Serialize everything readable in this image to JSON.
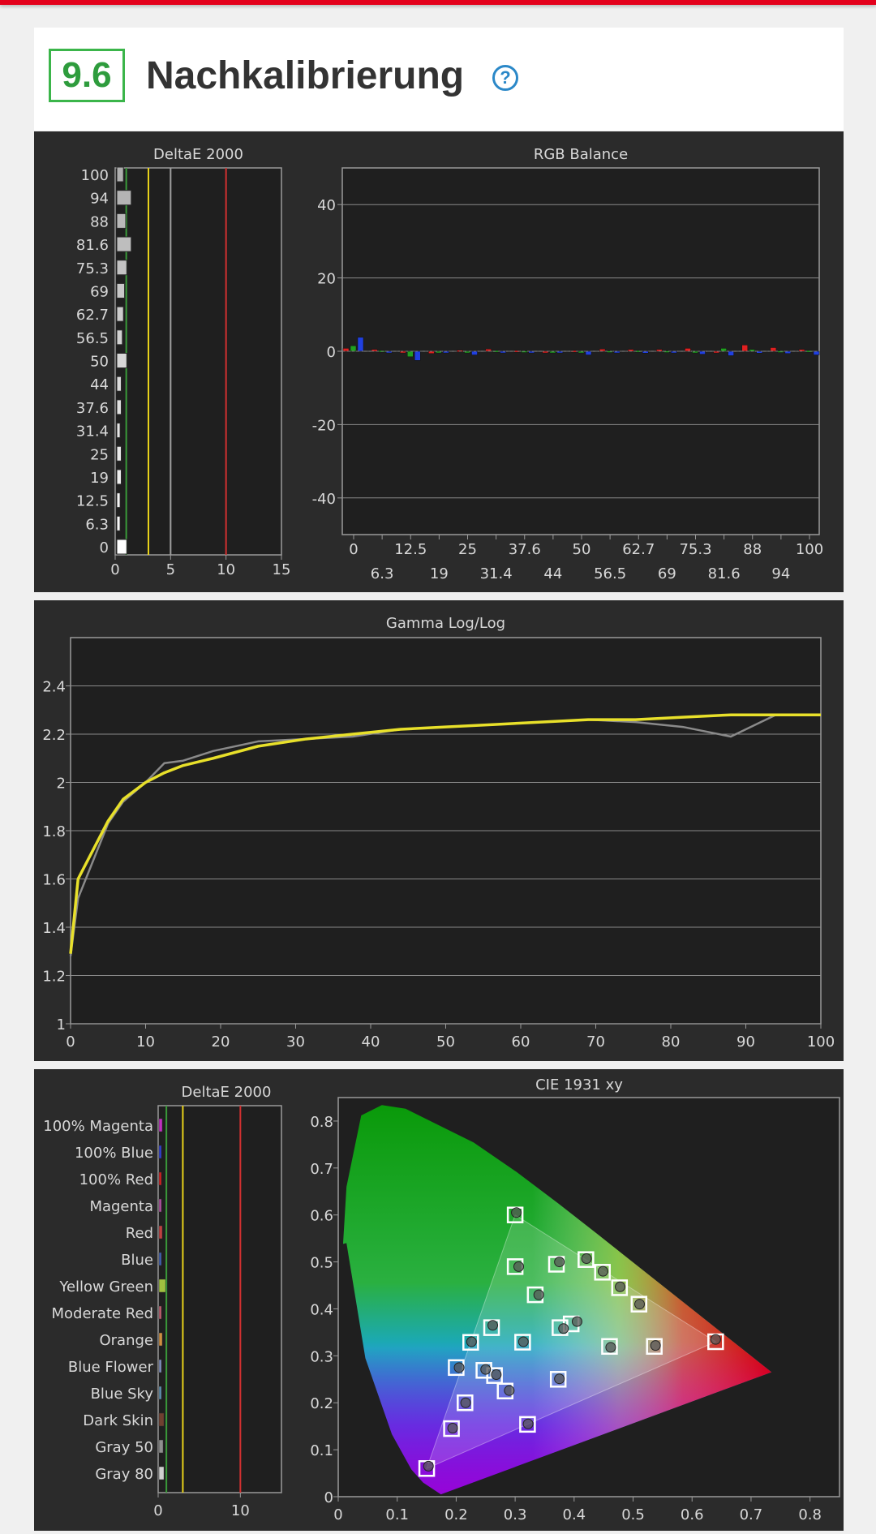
{
  "header": {
    "section_number": "9.6",
    "title": "Nachkalibrierung",
    "help_icon": "question-circle-icon"
  },
  "colors": {
    "accent_green": "#3bb54a",
    "brand_red": "#e3001b",
    "help_blue": "#2b88c8",
    "target_yellow": "#e8d21a"
  },
  "chart_data": [
    {
      "type": "bar",
      "title": "DeltaE 2000",
      "orientation": "horizontal",
      "categories": [
        "0",
        "6.3",
        "12.5",
        "19",
        "25",
        "31.4",
        "37.6",
        "44",
        "50",
        "56.5",
        "62.7",
        "69",
        "75.3",
        "81.6",
        "88",
        "94",
        "100"
      ],
      "values": [
        0.9,
        0.3,
        0.3,
        0.4,
        0.4,
        0.3,
        0.4,
        0.4,
        0.9,
        0.5,
        0.6,
        0.7,
        0.9,
        1.3,
        0.8,
        1.3,
        0.6
      ],
      "xlim": [
        0,
        15
      ],
      "xticks": [
        0,
        5,
        10,
        15
      ],
      "reference_lines": [
        {
          "value": 1,
          "color": "#3a9a3a"
        },
        {
          "value": 3,
          "color": "#e8d21a"
        },
        {
          "value": 5,
          "color": "#a0a0a0"
        },
        {
          "value": 10,
          "color": "#d03030"
        }
      ]
    },
    {
      "type": "bar",
      "title": "RGB Balance",
      "categories": [
        "0",
        "6.3",
        "12.5",
        "19",
        "25",
        "31.4",
        "37.6",
        "44",
        "50",
        "56.5",
        "62.7",
        "69",
        "75.3",
        "81.6",
        "88",
        "94",
        "100"
      ],
      "series": [
        {
          "color": "#e02020",
          "values": [
            0.8,
            0.5,
            -0.4,
            -0.6,
            0.3,
            0.6,
            0.2,
            -0.2,
            0.2,
            0.6,
            0.5,
            0.5,
            0.8,
            -0.3,
            1.7,
            1.0,
            0.5
          ]
        },
        {
          "color": "#20a020",
          "values": [
            1.5,
            0.2,
            -1.5,
            -0.3,
            -0.2,
            0.2,
            0.1,
            0.0,
            -0.3,
            0.1,
            0.2,
            0.1,
            -0.2,
            0.8,
            0.5,
            0.1,
            0.2
          ]
        },
        {
          "color": "#2040e0",
          "values": [
            3.8,
            -0.2,
            -2.5,
            -0.4,
            -1.0,
            -0.1,
            -0.2,
            -0.4,
            -1.0,
            -0.4,
            -0.5,
            -0.3,
            -0.8,
            -1.2,
            -0.5,
            -0.6,
            -1.0
          ]
        }
      ],
      "ylim": [
        -50,
        50
      ],
      "yticks": [
        40,
        20,
        0,
        -20,
        -40
      ]
    },
    {
      "type": "line",
      "title": "Gamma Log/Log",
      "x": [
        0,
        1,
        5,
        7,
        10,
        12.5,
        15,
        19,
        25,
        31.4,
        37.6,
        44,
        50,
        56.5,
        62.7,
        69,
        75.3,
        81.6,
        88,
        94,
        100
      ],
      "series": [
        {
          "color": "#8a8a8a",
          "values": [
            1.28,
            1.52,
            1.83,
            1.92,
            2.0,
            2.08,
            2.09,
            2.13,
            2.17,
            2.18,
            2.19,
            2.22,
            2.23,
            2.24,
            2.25,
            2.26,
            2.25,
            2.23,
            2.19,
            2.28,
            2.28
          ]
        },
        {
          "color": "#e8e02a",
          "values": [
            1.29,
            1.6,
            1.84,
            1.93,
            2.0,
            2.04,
            2.07,
            2.1,
            2.15,
            2.18,
            2.2,
            2.22,
            2.23,
            2.24,
            2.25,
            2.26,
            2.26,
            2.27,
            2.28,
            2.28,
            2.28
          ]
        }
      ],
      "xlim": [
        0,
        100
      ],
      "xticks": [
        0,
        10,
        20,
        30,
        40,
        50,
        60,
        70,
        80,
        90,
        100
      ],
      "ylim": [
        1,
        2.6
      ],
      "yticks": [
        1,
        1.2,
        1.4,
        1.6,
        1.8,
        2,
        2.2,
        2.4
      ]
    },
    {
      "type": "bar",
      "title": "DeltaE 2000",
      "orientation": "horizontal",
      "categories": [
        "100% Magenta",
        "100% Blue",
        "100% Red",
        "Magenta",
        "Red",
        "Blue",
        "Yellow Green",
        "Moderate Red",
        "Orange",
        "Blue Flower",
        "Blue Sky",
        "Dark Skin",
        "Gray 50",
        "Gray 80"
      ],
      "values": [
        0.4,
        0.3,
        0.3,
        0.3,
        0.4,
        0.3,
        0.8,
        0.3,
        0.4,
        0.3,
        0.3,
        0.6,
        0.5,
        0.6
      ],
      "xlim": [
        0,
        15
      ],
      "xticks": [
        0,
        10
      ],
      "reference_lines": [
        {
          "value": 1,
          "color": "#3a9a3a"
        },
        {
          "value": 3,
          "color": "#e8d21a"
        },
        {
          "value": 10,
          "color": "#d03030"
        }
      ]
    },
    {
      "type": "scatter",
      "title": "CIE 1931 xy",
      "xlim": [
        0,
        0.85
      ],
      "ylim": [
        0,
        0.85
      ],
      "xticks": [
        0,
        0.1,
        0.2,
        0.3,
        0.4,
        0.5,
        0.6,
        0.7,
        0.8
      ],
      "yticks": [
        0,
        0.1,
        0.2,
        0.3,
        0.4,
        0.5,
        0.6,
        0.7,
        0.8
      ],
      "gamut_triangle": [
        [
          0.64,
          0.33
        ],
        [
          0.3,
          0.6
        ],
        [
          0.15,
          0.06
        ]
      ],
      "targets": [
        [
          0.64,
          0.33
        ],
        [
          0.3,
          0.6
        ],
        [
          0.15,
          0.06
        ],
        [
          0.3127,
          0.329
        ],
        [
          0.2246,
          0.3287
        ],
        [
          0.321,
          0.154
        ],
        [
          0.42,
          0.505
        ],
        [
          0.46,
          0.32
        ],
        [
          0.536,
          0.32
        ],
        [
          0.373,
          0.25
        ],
        [
          0.448,
          0.478
        ],
        [
          0.477,
          0.445
        ],
        [
          0.51,
          0.41
        ],
        [
          0.376,
          0.36
        ],
        [
          0.395,
          0.368
        ],
        [
          0.247,
          0.269
        ],
        [
          0.265,
          0.258
        ],
        [
          0.26,
          0.36
        ],
        [
          0.3,
          0.49
        ],
        [
          0.37,
          0.495
        ],
        [
          0.334,
          0.43
        ],
        [
          0.2,
          0.275
        ],
        [
          0.215,
          0.2
        ],
        [
          0.192,
          0.145
        ],
        [
          0.283,
          0.225
        ]
      ],
      "measured": [
        [
          0.64,
          0.335
        ],
        [
          0.302,
          0.605
        ],
        [
          0.153,
          0.065
        ],
        [
          0.314,
          0.33
        ],
        [
          0.226,
          0.33
        ],
        [
          0.322,
          0.155
        ],
        [
          0.421,
          0.507
        ],
        [
          0.462,
          0.318
        ],
        [
          0.538,
          0.322
        ],
        [
          0.375,
          0.251
        ],
        [
          0.449,
          0.48
        ],
        [
          0.478,
          0.447
        ],
        [
          0.511,
          0.41
        ],
        [
          0.382,
          0.358
        ],
        [
          0.405,
          0.373
        ],
        [
          0.25,
          0.271
        ],
        [
          0.268,
          0.26
        ],
        [
          0.262,
          0.365
        ],
        [
          0.306,
          0.49
        ],
        [
          0.375,
          0.5
        ],
        [
          0.34,
          0.43
        ],
        [
          0.205,
          0.275
        ],
        [
          0.216,
          0.2
        ],
        [
          0.194,
          0.146
        ],
        [
          0.29,
          0.226
        ]
      ]
    }
  ]
}
